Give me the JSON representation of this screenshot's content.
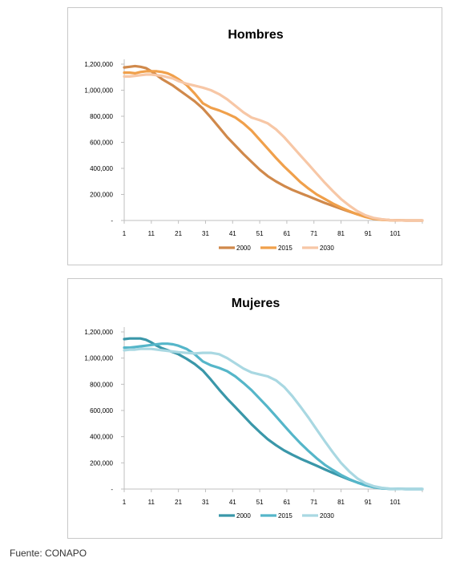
{
  "source_note": "Fuente:  CONAPO",
  "chart_data": [
    {
      "type": "line",
      "title": "Hombres",
      "x_ticks": [
        "1",
        "11",
        "21",
        "31",
        "41",
        "51",
        "61",
        "71",
        "81",
        "91",
        "101"
      ],
      "y_ticks": [
        "-",
        "200,000",
        "400,000",
        "600,000",
        "800,000",
        "1,000,000",
        "1,200,000"
      ],
      "ylim": [
        0,
        1200000
      ],
      "xlim": [
        1,
        111
      ],
      "grid": false,
      "legend_position": "bottom",
      "series": [
        {
          "name": "2000",
          "color": "#d0894b",
          "x": [
            1,
            3,
            5,
            7,
            9,
            11,
            13,
            15,
            17,
            19,
            21,
            24,
            27,
            30,
            33,
            36,
            39,
            42,
            45,
            48,
            51,
            54,
            57,
            60,
            63,
            66,
            69,
            72,
            75,
            78,
            81,
            84,
            87,
            90,
            93,
            96,
            99,
            102,
            105,
            108,
            111
          ],
          "values": [
            1175000,
            1180000,
            1185000,
            1180000,
            1170000,
            1145000,
            1115000,
            1085000,
            1060000,
            1035000,
            1005000,
            960000,
            915000,
            860000,
            790000,
            715000,
            640000,
            575000,
            510000,
            450000,
            390000,
            340000,
            300000,
            265000,
            235000,
            210000,
            185000,
            160000,
            135000,
            112000,
            90000,
            68000,
            48000,
            30000,
            16000,
            7000,
            3000,
            1000,
            0,
            0,
            0
          ]
        },
        {
          "name": "2015",
          "color": "#f0a04b",
          "x": [
            1,
            3,
            5,
            7,
            9,
            11,
            13,
            15,
            17,
            19,
            21,
            24,
            27,
            30,
            33,
            36,
            39,
            42,
            45,
            48,
            51,
            54,
            57,
            60,
            63,
            66,
            69,
            72,
            75,
            78,
            81,
            84,
            87,
            90,
            93,
            96,
            99,
            102,
            105,
            108,
            111
          ],
          "values": [
            1135000,
            1135000,
            1130000,
            1140000,
            1145000,
            1145000,
            1145000,
            1140000,
            1130000,
            1110000,
            1085000,
            1040000,
            975000,
            900000,
            865000,
            845000,
            820000,
            790000,
            745000,
            690000,
            620000,
            550000,
            480000,
            415000,
            355000,
            295000,
            245000,
            200000,
            165000,
            130000,
            100000,
            72000,
            48000,
            27000,
            13000,
            5000,
            2000,
            1000,
            0,
            0,
            0
          ]
        },
        {
          "name": "2030",
          "color": "#f7c7a6",
          "x": [
            1,
            3,
            5,
            7,
            9,
            11,
            13,
            15,
            17,
            19,
            21,
            24,
            27,
            30,
            33,
            36,
            39,
            42,
            45,
            48,
            51,
            54,
            57,
            60,
            63,
            66,
            69,
            72,
            75,
            78,
            81,
            84,
            87,
            90,
            93,
            96,
            99,
            102,
            105,
            108,
            111
          ],
          "values": [
            1105000,
            1105000,
            1110000,
            1115000,
            1120000,
            1120000,
            1115000,
            1110000,
            1100000,
            1090000,
            1070000,
            1050000,
            1035000,
            1020000,
            1000000,
            970000,
            930000,
            880000,
            830000,
            790000,
            770000,
            745000,
            700000,
            640000,
            570000,
            500000,
            430000,
            360000,
            290000,
            225000,
            165000,
            115000,
            72000,
            40000,
            20000,
            9000,
            3000,
            1000,
            0,
            0,
            0
          ]
        }
      ]
    },
    {
      "type": "line",
      "title": "Mujeres",
      "x_ticks": [
        "1",
        "11",
        "21",
        "31",
        "41",
        "51",
        "61",
        "71",
        "81",
        "91",
        "101"
      ],
      "y_ticks": [
        "-",
        "200,000",
        "400,000",
        "600,000",
        "800,000",
        "1,000,000",
        "1,200,000"
      ],
      "ylim": [
        0,
        1200000
      ],
      "xlim": [
        1,
        111
      ],
      "grid": false,
      "legend_position": "bottom",
      "series": [
        {
          "name": "2000",
          "color": "#3a97a9",
          "x": [
            1,
            3,
            5,
            7,
            9,
            11,
            13,
            15,
            17,
            19,
            21,
            24,
            27,
            30,
            33,
            36,
            39,
            42,
            45,
            48,
            51,
            54,
            57,
            60,
            63,
            66,
            69,
            72,
            75,
            78,
            81,
            84,
            87,
            90,
            93,
            96,
            99,
            102,
            105,
            108,
            111
          ],
          "values": [
            1145000,
            1150000,
            1150000,
            1150000,
            1140000,
            1120000,
            1095000,
            1075000,
            1060000,
            1045000,
            1030000,
            995000,
            955000,
            905000,
            835000,
            760000,
            690000,
            625000,
            560000,
            495000,
            435000,
            380000,
            335000,
            295000,
            262000,
            232000,
            205000,
            178000,
            150000,
            123000,
            98000,
            73000,
            50000,
            30000,
            15000,
            6000,
            2000,
            1000,
            0,
            0,
            0
          ]
        },
        {
          "name": "2015",
          "color": "#55b6c9",
          "x": [
            1,
            3,
            5,
            7,
            9,
            11,
            13,
            15,
            17,
            19,
            21,
            24,
            27,
            30,
            33,
            36,
            39,
            42,
            45,
            48,
            51,
            54,
            57,
            60,
            63,
            66,
            69,
            72,
            75,
            78,
            81,
            84,
            87,
            90,
            93,
            96,
            99,
            102,
            105,
            108,
            111
          ],
          "values": [
            1080000,
            1080000,
            1085000,
            1090000,
            1095000,
            1100000,
            1105000,
            1110000,
            1110000,
            1105000,
            1095000,
            1070000,
            1030000,
            975000,
            945000,
            925000,
            900000,
            860000,
            810000,
            755000,
            690000,
            625000,
            555000,
            485000,
            415000,
            350000,
            290000,
            235000,
            185000,
            145000,
            108000,
            76000,
            50000,
            29000,
            14000,
            5000,
            2000,
            1000,
            0,
            0,
            0
          ]
        },
        {
          "name": "2030",
          "color": "#a9d8e2",
          "x": [
            1,
            3,
            5,
            7,
            9,
            11,
            13,
            15,
            17,
            19,
            21,
            24,
            27,
            30,
            33,
            36,
            39,
            42,
            45,
            48,
            51,
            54,
            57,
            60,
            63,
            66,
            69,
            72,
            75,
            78,
            81,
            84,
            87,
            90,
            93,
            96,
            99,
            102,
            105,
            108,
            111
          ],
          "values": [
            1060000,
            1065000,
            1065000,
            1070000,
            1070000,
            1070000,
            1065000,
            1060000,
            1055000,
            1050000,
            1045000,
            1040000,
            1035000,
            1040000,
            1040000,
            1030000,
            1000000,
            960000,
            920000,
            890000,
            875000,
            860000,
            830000,
            780000,
            710000,
            630000,
            545000,
            455000,
            365000,
            280000,
            200000,
            135000,
            82000,
            45000,
            22000,
            9000,
            3000,
            1000,
            0,
            0,
            0
          ]
        }
      ]
    }
  ]
}
